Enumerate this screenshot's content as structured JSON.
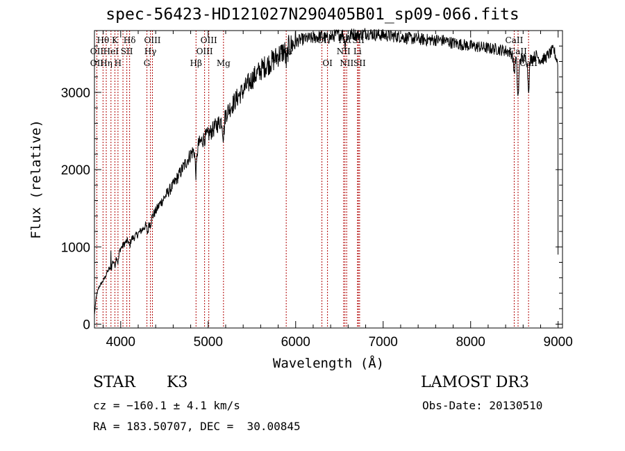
{
  "chart_data": {
    "type": "line",
    "title": "spec-56423-HD121027N290405B01_sp09-066.fits",
    "xlabel": "Wavelength (Å)",
    "ylabel": "Flux (relative)",
    "xlim": [
      3700,
      9050
    ],
    "ylim": [
      -50,
      3800
    ],
    "x_ticks": [
      4000,
      5000,
      6000,
      7000,
      8000,
      9000
    ],
    "x_tick_labels": [
      "4000",
      "5000",
      "6000",
      "7000",
      "8000",
      "9000"
    ],
    "y_ticks": [
      0,
      1000,
      2000,
      3000
    ],
    "y_tick_labels": [
      "0",
      "1000",
      "2000",
      "3000"
    ],
    "series": [
      {
        "name": "flux",
        "x": [
          3700,
          3720,
          3750,
          3800,
          3850,
          3900,
          3950,
          4000,
          4050,
          4100,
          4150,
          4200,
          4250,
          4300,
          4350,
          4400,
          4450,
          4500,
          4550,
          4600,
          4650,
          4700,
          4750,
          4800,
          4850,
          4900,
          4950,
          5000,
          5050,
          5100,
          5150,
          5200,
          5250,
          5300,
          5350,
          5400,
          5450,
          5500,
          5550,
          5600,
          5650,
          5700,
          5750,
          5800,
          5850,
          5900,
          5950,
          6000,
          6050,
          6100,
          6150,
          6200,
          6250,
          6300,
          6350,
          6400,
          6450,
          6500,
          6550,
          6600,
          6650,
          6700,
          6750,
          6800,
          6900,
          7000,
          7100,
          7200,
          7300,
          7400,
          7500,
          7600,
          7700,
          7800,
          7900,
          8000,
          8100,
          8200,
          8300,
          8400,
          8450,
          8500,
          8550,
          8600,
          8650,
          8700,
          8750,
          8800,
          8850,
          8900,
          8950,
          8990
        ],
        "y": [
          120,
          350,
          480,
          560,
          680,
          800,
          900,
          980,
          1050,
          1100,
          1120,
          1170,
          1230,
          1300,
          1380,
          1460,
          1560,
          1640,
          1720,
          1800,
          1900,
          2000,
          2100,
          2200,
          2270,
          2340,
          2400,
          2450,
          2510,
          2580,
          2640,
          2720,
          2800,
          2880,
          2960,
          3020,
          3100,
          3170,
          3230,
          3290,
          3340,
          3380,
          3420,
          3480,
          3520,
          3570,
          3610,
          3650,
          3680,
          3690,
          3700,
          3700,
          3720,
          3730,
          3700,
          3710,
          3740,
          3750,
          3760,
          3720,
          3760,
          3740,
          3750,
          3770,
          3750,
          3740,
          3730,
          3720,
          3700,
          3690,
          3680,
          3680,
          3670,
          3640,
          3620,
          3600,
          3590,
          3570,
          3560,
          3540,
          3520,
          3470,
          3460,
          3430,
          3450,
          3440,
          3480,
          3420,
          3440,
          3500,
          3550,
          3400
        ]
      }
    ],
    "absorption_features": [
      {
        "x": 3889,
        "depth": 80
      },
      {
        "x": 3934,
        "depth": 110
      },
      {
        "x": 3969,
        "depth": 130
      },
      {
        "x": 4102,
        "depth": 90
      },
      {
        "x": 4308,
        "depth": 130
      },
      {
        "x": 4340,
        "depth": 70
      },
      {
        "x": 4861,
        "depth": 330
      },
      {
        "x": 5175,
        "depth": 240
      },
      {
        "x": 5895,
        "depth": 190
      },
      {
        "x": 6563,
        "depth": 120
      },
      {
        "x": 8498,
        "depth": 200
      },
      {
        "x": 8542,
        "depth": 520
      },
      {
        "x": 8662,
        "depth": 390
      }
    ],
    "spikes": [
      {
        "x": 3889,
        "y": 950
      }
    ],
    "line_markers": {
      "wavelengths": [
        3727,
        3798,
        3835,
        3889,
        3934,
        3969,
        4026,
        4070,
        4102,
        4300,
        4340,
        4363,
        4861,
        4959,
        5007,
        5175,
        5892,
        6300,
        6364,
        6548,
        6563,
        6583,
        6707,
        6717,
        6731,
        8498,
        8542,
        8662
      ],
      "labels": [
        {
          "text": "Hθ",
          "x": 3798,
          "row": 1
        },
        {
          "text": "K",
          "x": 3934,
          "row": 1
        },
        {
          "text": "Hδ",
          "x": 4102,
          "row": 1
        },
        {
          "text": "OIII",
          "x": 4363,
          "row": 1
        },
        {
          "text": "OIII",
          "x": 5007,
          "row": 1
        },
        {
          "text": "OI",
          "x": 6300,
          "row": 1
        },
        {
          "text": "Hα",
          "x": 6563,
          "row": 1
        },
        {
          "text": "SII",
          "x": 6717,
          "row": 1
        },
        {
          "text": "CaII",
          "x": 8498,
          "row": 1
        },
        {
          "text": "OII",
          "x": 3727,
          "row": 2
        },
        {
          "text": "HeI",
          "x": 3889,
          "row": 2
        },
        {
          "text": "SII",
          "x": 4070,
          "row": 2
        },
        {
          "text": "Hγ",
          "x": 4340,
          "row": 2
        },
        {
          "text": "OIII",
          "x": 4959,
          "row": 2
        },
        {
          "text": "Na",
          "x": 5892,
          "row": 2
        },
        {
          "text": "NII",
          "x": 6548,
          "row": 2
        },
        {
          "text": "Li",
          "x": 6707,
          "row": 2
        },
        {
          "text": "CaII",
          "x": 8542,
          "row": 2
        },
        {
          "text": "OII",
          "x": 3727,
          "row": 3
        },
        {
          "text": "Hη",
          "x": 3835,
          "row": 3
        },
        {
          "text": "H",
          "x": 3969,
          "row": 3
        },
        {
          "text": "G",
          "x": 4300,
          "row": 3
        },
        {
          "text": "Hβ",
          "x": 4861,
          "row": 3
        },
        {
          "text": "Mg",
          "x": 5175,
          "row": 3
        },
        {
          "text": "OI",
          "x": 6364,
          "row": 3
        },
        {
          "text": "NII",
          "x": 6583,
          "row": 3
        },
        {
          "text": "SII",
          "x": 6731,
          "row": 3
        },
        {
          "text": "CaII",
          "x": 8662,
          "row": 3
        }
      ]
    },
    "colors": {
      "spectrum": "#000000",
      "marker": "#b00000",
      "axes": "#000000",
      "background": "#ffffff"
    }
  },
  "info": {
    "object_class": "STAR",
    "subclass": "K3",
    "survey": "LAMOST DR3",
    "cz": "cz = −160.1 ± 4.1 km/s",
    "obs_date": "Obs-Date: 20130510",
    "coords": "RA = 183.50707, DEC =  30.00845"
  }
}
